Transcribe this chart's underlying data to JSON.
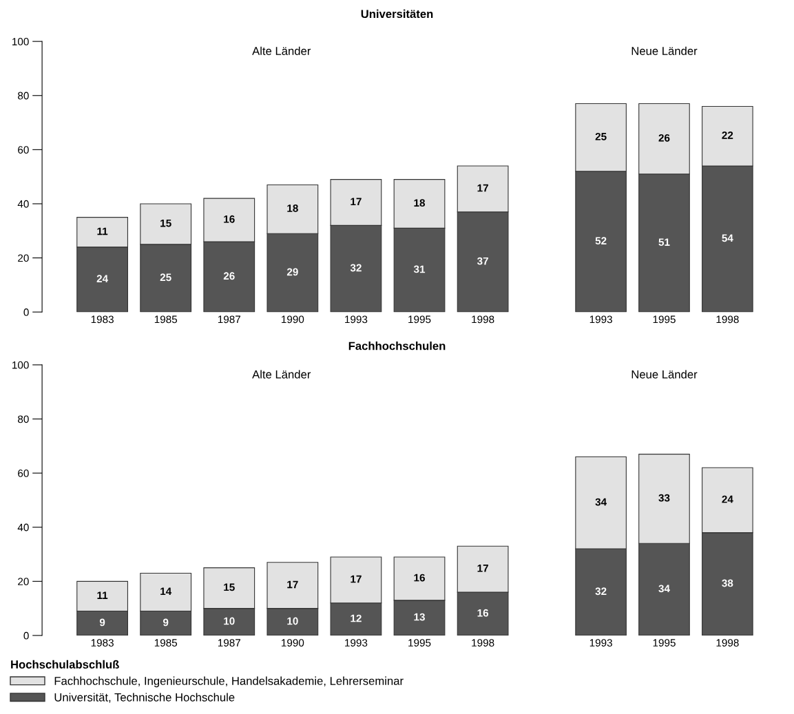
{
  "chart_data": [
    {
      "type": "bar",
      "title": "Universitäten",
      "subtitle": "Alte Länder",
      "categories": [
        "1983",
        "1985",
        "1987",
        "1990",
        "1993",
        "1995",
        "1998"
      ],
      "stacked": true,
      "data_labels": true,
      "ylim": [
        0,
        100
      ],
      "yticks": [
        0,
        20,
        40,
        60,
        80,
        100
      ],
      "grid": false,
      "series": [
        {
          "color": "#555555",
          "values": [
            24,
            25,
            26,
            29,
            32,
            31,
            37
          ]
        },
        {
          "color": "#e2e2e2",
          "values": [
            11,
            15,
            16,
            18,
            17,
            18,
            17
          ]
        }
      ]
    },
    {
      "type": "bar",
      "subtitle": "Neue Länder",
      "categories": [
        "1993",
        "1995",
        "1998"
      ],
      "stacked": true,
      "data_labels": true,
      "ylim": [
        0,
        100
      ],
      "tick_labels": "x",
      "grid": false,
      "series": [
        {
          "color": "#555555",
          "values": [
            52,
            51,
            54
          ]
        },
        {
          "color": "#e2e2e2",
          "values": [
            25,
            26,
            22
          ]
        }
      ]
    },
    {
      "type": "bar",
      "title": "Fachhochschulen",
      "subtitle": "Alte Länder",
      "categories": [
        "1983",
        "1985",
        "1987",
        "1990",
        "1993",
        "1995",
        "1998"
      ],
      "stacked": true,
      "data_labels": true,
      "ylim": [
        0,
        100
      ],
      "yticks": [
        0,
        20,
        40,
        60,
        80,
        100
      ],
      "grid": false,
      "series": [
        {
          "color": "#555555",
          "values": [
            9,
            9,
            10,
            10,
            12,
            13,
            16
          ]
        },
        {
          "color": "#e2e2e2",
          "values": [
            11,
            14,
            15,
            17,
            17,
            16,
            17
          ]
        }
      ]
    },
    {
      "type": "bar",
      "subtitle": "Neue Länder",
      "categories": [
        "1993",
        "1995",
        "1998"
      ],
      "stacked": true,
      "data_labels": true,
      "ylim": [
        0,
        100
      ],
      "tick_labels": "x",
      "grid": false,
      "legend": "bottom",
      "legend_title": "Hochschulabschluß",
      "series": [
        {
          "name": "Universität, Technische Hochschule",
          "color": "#555555",
          "values": [
            32,
            34,
            38
          ]
        },
        {
          "name": "Fachhochschule, Ingenieurschule, Handelsakademie, Lehrerseminar",
          "color": "#e2e2e2",
          "values": [
            34,
            33,
            24
          ]
        }
      ]
    }
  ]
}
